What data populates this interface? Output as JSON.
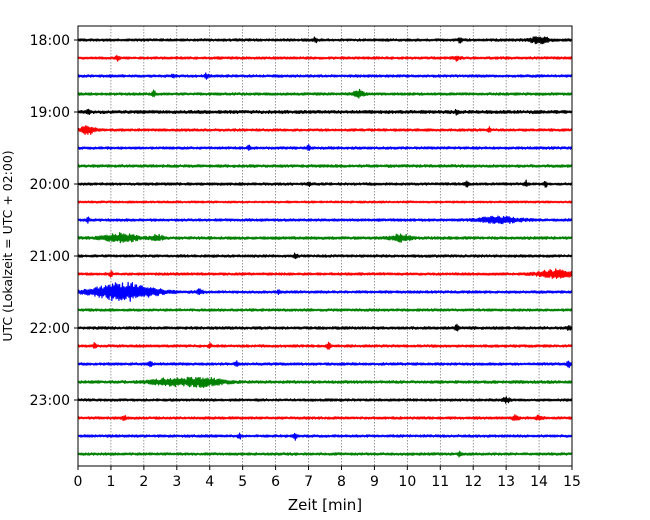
{
  "chart_data": {
    "type": "line",
    "title": "",
    "xlabel": "Zeit  [min]",
    "ylabel": "UTC (Lokalzeit = UTC + 02:00)",
    "xlim": [
      0,
      15
    ],
    "x_ticks": [
      0,
      1,
      2,
      3,
      4,
      5,
      6,
      7,
      8,
      9,
      10,
      11,
      12,
      13,
      14,
      15
    ],
    "grid_x": true,
    "trace_interval_minutes": 15,
    "start_time": "18:00",
    "y_tick_labels": [
      "18:00",
      "19:00",
      "20:00",
      "21:00",
      "22:00",
      "23:00"
    ],
    "trace_colors": [
      "#000000",
      "#ff0000",
      "#0000ff",
      "#008000"
    ],
    "traces": [
      {
        "time": "18:00",
        "color": "#000000",
        "base_amp": 1.2,
        "events": [
          {
            "t": 7.2,
            "amp": 3,
            "w": 0.05
          },
          {
            "t": 11.6,
            "amp": 3,
            "w": 0.05
          },
          {
            "t": 14.0,
            "amp": 3,
            "w": 0.3
          }
        ]
      },
      {
        "time": "18:15",
        "color": "#ff0000",
        "base_amp": 1.2,
        "events": [
          {
            "t": 1.2,
            "amp": 3,
            "w": 0.05
          },
          {
            "t": 11.5,
            "amp": 2.5,
            "w": 0.1
          }
        ]
      },
      {
        "time": "18:30",
        "color": "#0000ff",
        "base_amp": 1.2,
        "events": [
          {
            "t": 2.9,
            "amp": 2.5,
            "w": 0.05
          },
          {
            "t": 3.9,
            "amp": 2.5,
            "w": 0.05
          }
        ]
      },
      {
        "time": "18:45",
        "color": "#008000",
        "base_amp": 1.2,
        "events": [
          {
            "t": 2.3,
            "amp": 3,
            "w": 0.05
          },
          {
            "t": 8.5,
            "amp": 4,
            "w": 0.15
          }
        ]
      },
      {
        "time": "19:00",
        "color": "#000000",
        "base_amp": 1.5,
        "events": [
          {
            "t": 0.3,
            "amp": 2.5,
            "w": 0.05
          },
          {
            "t": 11.5,
            "amp": 2.5,
            "w": 0.05
          }
        ]
      },
      {
        "time": "19:15",
        "color": "#ff0000",
        "base_amp": 1.2,
        "events": [
          {
            "t": 0.3,
            "amp": 4,
            "w": 0.2
          },
          {
            "t": 12.5,
            "amp": 2.5,
            "w": 0.05
          }
        ]
      },
      {
        "time": "19:30",
        "color": "#0000ff",
        "base_amp": 1.2,
        "events": [
          {
            "t": 5.2,
            "amp": 2.5,
            "w": 0.05
          },
          {
            "t": 7.0,
            "amp": 2.5,
            "w": 0.05
          }
        ]
      },
      {
        "time": "19:45",
        "color": "#008000",
        "base_amp": 1.3,
        "events": []
      },
      {
        "time": "20:00",
        "color": "#000000",
        "base_amp": 1.2,
        "events": [
          {
            "t": 7.0,
            "amp": 2.5,
            "w": 0.05
          },
          {
            "t": 11.8,
            "amp": 2.5,
            "w": 0.05
          },
          {
            "t": 13.6,
            "amp": 3,
            "w": 0.05
          },
          {
            "t": 14.2,
            "amp": 2.5,
            "w": 0.05
          }
        ]
      },
      {
        "time": "20:15",
        "color": "#ff0000",
        "base_amp": 1.0,
        "events": []
      },
      {
        "time": "20:30",
        "color": "#0000ff",
        "base_amp": 1.2,
        "events": [
          {
            "t": 0.3,
            "amp": 2.5,
            "w": 0.05
          },
          {
            "t": 12.8,
            "amp": 3,
            "w": 0.6
          }
        ]
      },
      {
        "time": "20:45",
        "color": "#008000",
        "base_amp": 1.3,
        "events": [
          {
            "t": 1.3,
            "amp": 4,
            "w": 0.5
          },
          {
            "t": 2.4,
            "amp": 2.5,
            "w": 0.2
          },
          {
            "t": 9.8,
            "amp": 3,
            "w": 0.3
          }
        ]
      },
      {
        "time": "21:00",
        "color": "#000000",
        "base_amp": 1.2,
        "events": [
          {
            "t": 6.6,
            "amp": 2.5,
            "w": 0.05
          }
        ]
      },
      {
        "time": "21:15",
        "color": "#ff0000",
        "base_amp": 1.2,
        "events": [
          {
            "t": 1.0,
            "amp": 2.5,
            "w": 0.05
          },
          {
            "t": 14.5,
            "amp": 4,
            "w": 0.5
          }
        ]
      },
      {
        "time": "21:30",
        "color": "#0000ff",
        "base_amp": 1.2,
        "events": [
          {
            "t": 1.4,
            "amp": 9,
            "w": 0.9
          },
          {
            "t": 3.7,
            "amp": 2.5,
            "w": 0.1
          },
          {
            "t": 6.1,
            "amp": 2.5,
            "w": 0.05
          }
        ]
      },
      {
        "time": "21:45",
        "color": "#008000",
        "base_amp": 1.2,
        "events": []
      },
      {
        "time": "22:00",
        "color": "#000000",
        "base_amp": 1.3,
        "events": [
          {
            "t": 11.5,
            "amp": 2.5,
            "w": 0.05
          },
          {
            "t": 14.9,
            "amp": 3,
            "w": 0.05
          }
        ]
      },
      {
        "time": "22:15",
        "color": "#ff0000",
        "base_amp": 1.2,
        "events": [
          {
            "t": 0.5,
            "amp": 2.5,
            "w": 0.05
          },
          {
            "t": 4.0,
            "amp": 2.5,
            "w": 0.05
          },
          {
            "t": 7.6,
            "amp": 4,
            "w": 0.05
          }
        ]
      },
      {
        "time": "22:30",
        "color": "#0000ff",
        "base_amp": 1.2,
        "events": [
          {
            "t": 2.2,
            "amp": 2.5,
            "w": 0.05
          },
          {
            "t": 4.8,
            "amp": 3,
            "w": 0.05
          },
          {
            "t": 14.9,
            "amp": 3,
            "w": 0.05
          }
        ]
      },
      {
        "time": "22:45",
        "color": "#008000",
        "base_amp": 1.3,
        "events": [
          {
            "t": 2.8,
            "amp": 3,
            "w": 0.6
          },
          {
            "t": 3.8,
            "amp": 4,
            "w": 0.6
          }
        ]
      },
      {
        "time": "23:00",
        "color": "#000000",
        "base_amp": 1.2,
        "events": [
          {
            "t": 13.0,
            "amp": 2.5,
            "w": 0.1
          }
        ]
      },
      {
        "time": "23:15",
        "color": "#ff0000",
        "base_amp": 1.2,
        "events": [
          {
            "t": 1.4,
            "amp": 2.5,
            "w": 0.05
          },
          {
            "t": 13.3,
            "amp": 2.5,
            "w": 0.1
          },
          {
            "t": 14.0,
            "amp": 2.5,
            "w": 0.1
          }
        ]
      },
      {
        "time": "23:30",
        "color": "#0000ff",
        "base_amp": 1.2,
        "events": [
          {
            "t": 4.9,
            "amp": 2.5,
            "w": 0.05
          },
          {
            "t": 6.6,
            "amp": 3,
            "w": 0.05
          }
        ]
      },
      {
        "time": "23:45",
        "color": "#008000",
        "base_amp": 1.2,
        "events": [
          {
            "t": 11.6,
            "amp": 2.5,
            "w": 0.05
          }
        ]
      }
    ]
  }
}
